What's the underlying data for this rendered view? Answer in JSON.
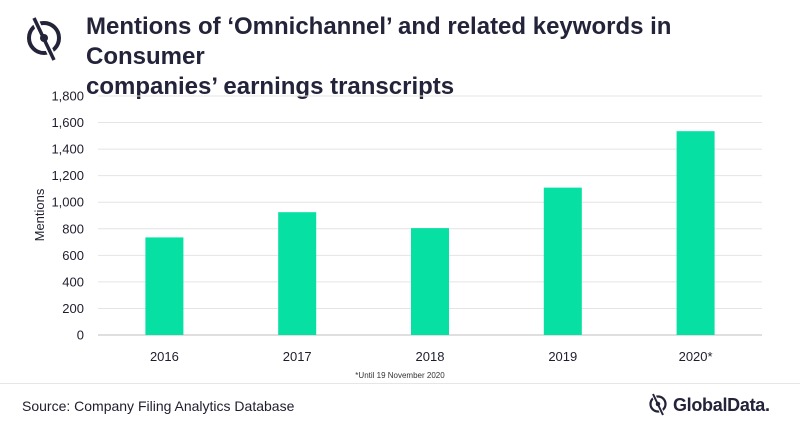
{
  "header": {
    "title_line1": "Mentions of ‘Omnichannel’ and related keywords in Consumer",
    "title_line2": "companies’ earnings transcripts"
  },
  "chart_data": {
    "type": "bar",
    "categories": [
      "2016",
      "2017",
      "2018",
      "2019",
      "2020*"
    ],
    "values": [
      735,
      925,
      805,
      1110,
      1535
    ],
    "ylabel": "Mentions",
    "ylim": [
      0,
      1800
    ],
    "yticks": [
      0,
      200,
      400,
      600,
      800,
      1000,
      1200,
      1400,
      1600,
      1800
    ],
    "ytick_labels": [
      "0",
      "200",
      "400",
      "600",
      "800",
      "1,000",
      "1,200",
      "1,400",
      "1,600",
      "1,800"
    ],
    "grid": true,
    "bar_color": "#07e0a3"
  },
  "footnote": "*Until 19 November 2020",
  "source": "Source: Company Filing Analytics Database",
  "brand": {
    "name": "GlobalData",
    "dot": "."
  },
  "colors": {
    "accent": "#07e0a3",
    "text": "#23233a"
  }
}
